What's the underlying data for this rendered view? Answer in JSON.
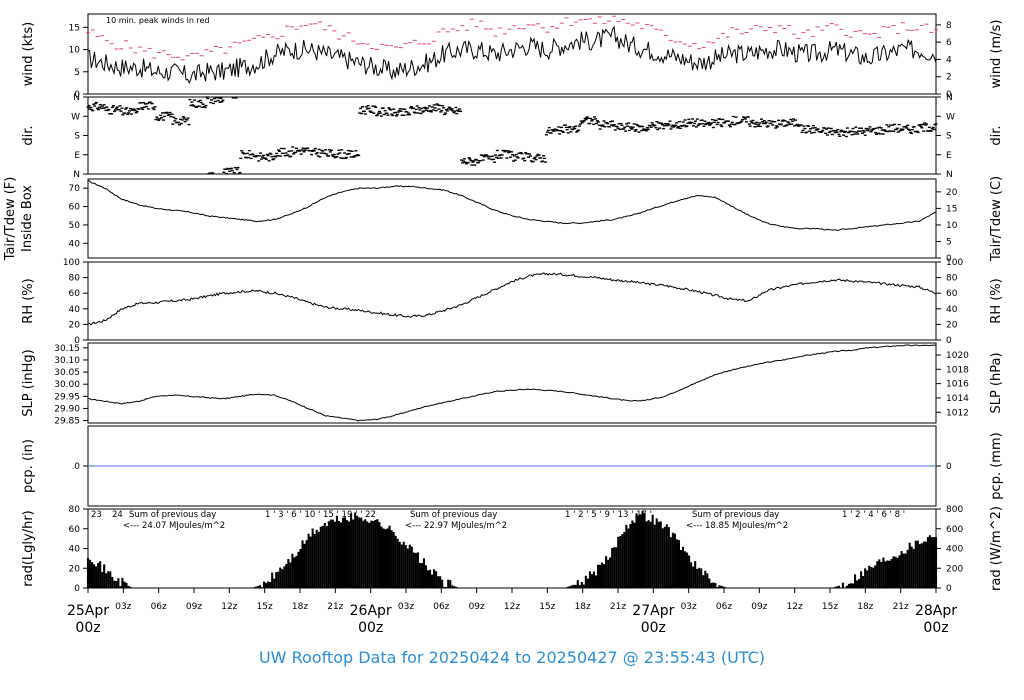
{
  "footer_title": "UW Rooftop Data for 20250424  to  20250427 @ 23:55:43  (UTC)",
  "colors": {
    "trace": "#000000",
    "peak": "#e8437a",
    "precip": "#4a6fd0",
    "purple": "#9b30d9",
    "footer": "#2a8fd6",
    "date": "#d9365e"
  },
  "time_axis": {
    "ticks": [
      "03z",
      "06z",
      "09z",
      "12z",
      "15z",
      "18z",
      "21z"
    ],
    "date_labels": [
      {
        "date": "25Apr",
        "hour": "00z"
      },
      {
        "date": "26Apr",
        "hour": "00z"
      },
      {
        "date": "27Apr",
        "hour": "00z"
      },
      {
        "date": "28Apr",
        "hour": "00z"
      }
    ]
  },
  "chart_data": [
    {
      "type": "line",
      "id": "wind",
      "ylabel_left": "wind (kts)",
      "ylabel_right": "wind (m/s)",
      "yticks_left": [
        "0",
        "5",
        "10",
        "15"
      ],
      "yticks_right": [
        "0",
        "2",
        "4",
        "6",
        "8"
      ],
      "ylim": [
        0,
        18
      ],
      "annotation": "10 min. peak winds in red",
      "series": [
        {
          "values": [
            8,
            7,
            6,
            6,
            5,
            5,
            4,
            5,
            5,
            6,
            7,
            9,
            10,
            10,
            9,
            8,
            7,
            6,
            5,
            6,
            7,
            9,
            10,
            10,
            9,
            10,
            11,
            10,
            11,
            12,
            12,
            13,
            11,
            10,
            9,
            8,
            7,
            8,
            9,
            9,
            10,
            10,
            9,
            9,
            10,
            9,
            8,
            9,
            10,
            10,
            9
          ]
        },
        {
          "name": "10 min. peak winds",
          "values": [
            14,
            12,
            11,
            10,
            9,
            9,
            8,
            9,
            10,
            11,
            12,
            13,
            15,
            16,
            15,
            13,
            12,
            11,
            10,
            11,
            12,
            14,
            15,
            16,
            14,
            15,
            16,
            15,
            16,
            17,
            16,
            17,
            16,
            15,
            13,
            12,
            11,
            12,
            14,
            14,
            15,
            15,
            13,
            14,
            15,
            14,
            13,
            14,
            15,
            15,
            14
          ]
        }
      ]
    },
    {
      "type": "scatter",
      "id": "dir",
      "ylabel_left": "dir.",
      "ylabel_right": "dir.",
      "yticks": [
        "N",
        "E",
        "S",
        "W",
        "N"
      ],
      "points_deg": [
        315,
        300,
        290,
        320,
        270,
        250,
        330,
        350,
        10,
        90,
        80,
        100,
        110,
        100,
        95,
        90,
        300,
        290,
        285,
        300,
        310,
        295,
        60,
        70,
        90,
        80,
        75,
        200,
        210,
        250,
        230,
        220,
        215,
        225,
        230,
        240,
        235,
        240,
        250,
        240,
        235,
        240,
        210,
        200,
        195,
        200,
        205,
        215,
        210,
        220,
        230
      ]
    },
    {
      "type": "line",
      "id": "tair",
      "ylabel_left": "Tair/Tdew (F)\nInside Box",
      "ylabel_right": "Tair/Tdew (C)",
      "yticks_left": [
        "40",
        "50",
        "60",
        "70"
      ],
      "yticks_right": [
        "0",
        "5",
        "10",
        "15",
        "20"
      ],
      "ylim": [
        32,
        75
      ],
      "series": [
        {
          "values": [
            74,
            70,
            64,
            61,
            59,
            58,
            57,
            55,
            54,
            53,
            52,
            53,
            56,
            60,
            65,
            68,
            70,
            70,
            71,
            71,
            70,
            69,
            66,
            62,
            58,
            55,
            53,
            52,
            51,
            51,
            52,
            53,
            55,
            58,
            61,
            64,
            66,
            65,
            60,
            55,
            51,
            49,
            48,
            48,
            47,
            48,
            49,
            50,
            51,
            52,
            57
          ]
        }
      ]
    },
    {
      "type": "line",
      "id": "rh",
      "ylabel_left": "RH (%)",
      "ylabel_right": "RH (%)",
      "yticks_left": [
        "0",
        "20",
        "40",
        "60",
        "80",
        "100"
      ],
      "yticks_right": [
        "0",
        "20",
        "40",
        "60",
        "80",
        "100"
      ],
      "ylim": [
        0,
        100
      ],
      "series": [
        {
          "values": [
            20,
            25,
            40,
            47,
            48,
            50,
            52,
            56,
            60,
            62,
            63,
            60,
            55,
            48,
            42,
            40,
            38,
            35,
            32,
            30,
            32,
            38,
            45,
            55,
            65,
            75,
            82,
            85,
            84,
            82,
            80,
            77,
            75,
            72,
            70,
            66,
            62,
            57,
            52,
            50,
            63,
            68,
            72,
            75,
            77,
            76,
            74,
            72,
            70,
            68,
            60
          ]
        }
      ]
    },
    {
      "type": "line",
      "id": "slp",
      "ylabel_left": "SLP (inHg)",
      "ylabel_right": "SLP (hPa)",
      "yticks_left": [
        "29.85",
        "29.90",
        "29.95",
        "30.00",
        "30.05",
        "30.10",
        "30.15"
      ],
      "yticks_right": [
        "1012",
        "1014",
        "1016",
        "1018",
        "1020"
      ],
      "ylim": [
        29.84,
        30.17
      ],
      "series": [
        {
          "values": [
            29.94,
            29.93,
            29.92,
            29.93,
            29.95,
            29.955,
            29.95,
            29.945,
            29.94,
            29.95,
            29.96,
            29.955,
            29.93,
            29.9,
            29.87,
            29.86,
            29.85,
            29.855,
            29.87,
            29.89,
            29.91,
            29.925,
            29.94,
            29.955,
            29.97,
            29.975,
            29.98,
            29.975,
            29.97,
            29.96,
            29.95,
            29.94,
            29.93,
            29.935,
            29.95,
            29.98,
            30.01,
            30.04,
            30.06,
            30.075,
            30.09,
            30.1,
            30.115,
            30.125,
            30.135,
            30.14,
            30.15,
            30.155,
            30.16,
            30.16,
            30.16
          ]
        }
      ]
    },
    {
      "type": "line",
      "id": "pcp",
      "ylabel_left": "pcp. (in)",
      "ylabel_right": "pcp. (mm)",
      "yticks_left": [
        "0"
      ],
      "yticks_right": [
        "0"
      ],
      "ylim": [
        -1,
        1
      ],
      "series": [
        {
          "values": [
            0,
            0
          ]
        }
      ]
    },
    {
      "type": "area",
      "id": "rad",
      "ylabel_left": "rad(Lgly/hr)",
      "ylabel_right": "rad (W/m^2)",
      "yticks_left": [
        "0",
        "20",
        "40",
        "60",
        "80"
      ],
      "yticks_right": [
        "0",
        "200",
        "400",
        "600",
        "800"
      ],
      "ylim": [
        0,
        80
      ],
      "annotations": [
        {
          "text": "23"
        },
        {
          "text": "24"
        },
        {
          "text": "Sum of previous day"
        },
        {
          "text": "<--- 24.07 MJoules/m^2"
        },
        {
          "text": "1 ' 3 ' 6 ' 10 ' 15 ' 19 ' ' 22"
        },
        {
          "text": "Sum of previous day"
        },
        {
          "text": "<--- 22.97 MJoules/m^2"
        },
        {
          "text": "1 ' 2 ' 5 ' 9 ' 13 ' 17 '"
        },
        {
          "text": "Sum of previous day"
        },
        {
          "text": "<--- 18.85 MJoules/m^2"
        },
        {
          "text": "1 ' 2 ' 4 ' 6 ' 8 '"
        }
      ],
      "series": [
        {
          "values": [
            35,
            20,
            8,
            0,
            0,
            0,
            0,
            0,
            0,
            0,
            0,
            0,
            5,
            20,
            35,
            55,
            65,
            70,
            72,
            70,
            62,
            50,
            35,
            18,
            5,
            0,
            0,
            0,
            0,
            0,
            0,
            0,
            0,
            5,
            15,
            30,
            60,
            75,
            70,
            60,
            40,
            20,
            5,
            0,
            0,
            0,
            0,
            0,
            0,
            0,
            0,
            5,
            15,
            25,
            32,
            40,
            48,
            55
          ]
        }
      ]
    }
  ]
}
